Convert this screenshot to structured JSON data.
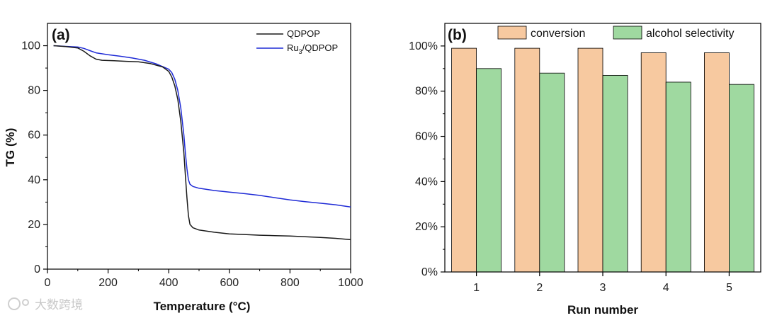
{
  "watermark": "大数跨境",
  "chart_data": [
    {
      "type": "line",
      "panel_label": "(a)",
      "xlabel": "Temperature (°C)",
      "ylabel": "TG (%)",
      "xlim": [
        0,
        1000
      ],
      "ylim": [
        0,
        110
      ],
      "xticks": [
        0,
        200,
        400,
        600,
        800,
        1000
      ],
      "yticks": [
        0,
        20,
        40,
        60,
        80,
        100
      ],
      "legend_position": "top-right",
      "series": [
        {
          "name": "QDPOP",
          "legend_main": "QDPOP",
          "color": "#1a1a1a",
          "x": [
            20,
            60,
            100,
            120,
            140,
            160,
            180,
            220,
            260,
            300,
            340,
            380,
            400,
            410,
            420,
            430,
            440,
            450,
            455,
            460,
            465,
            470,
            480,
            500,
            550,
            600,
            650,
            700,
            750,
            800,
            850,
            900,
            950,
            1000
          ],
          "y": [
            100,
            99.6,
            99,
            97.5,
            95.5,
            94,
            93.5,
            93.3,
            93,
            92.8,
            92,
            90.5,
            88.5,
            86,
            82,
            76,
            66,
            52,
            42,
            32,
            24,
            20,
            18.5,
            17.5,
            16.5,
            15.8,
            15.5,
            15.2,
            15,
            14.8,
            14.5,
            14.2,
            13.8,
            13.2
          ]
        },
        {
          "name": "Ru3/QDPOP",
          "legend_main": "Ru",
          "legend_sub": "3",
          "legend_rest": "/QDPOP",
          "color": "#1f2bd6",
          "x": [
            20,
            60,
            100,
            120,
            140,
            160,
            200,
            240,
            280,
            320,
            360,
            400,
            410,
            420,
            430,
            440,
            450,
            455,
            460,
            465,
            470,
            480,
            500,
            550,
            600,
            650,
            700,
            750,
            800,
            850,
            900,
            950,
            1000
          ],
          "y": [
            100,
            99.7,
            99.4,
            98.8,
            97.8,
            96.8,
            96,
            95.3,
            94.5,
            93.5,
            91.8,
            89.5,
            88,
            85,
            80,
            72,
            60,
            52,
            45,
            40,
            38,
            37,
            36.2,
            35.2,
            34.5,
            33.8,
            33,
            32,
            31,
            30.2,
            29.5,
            28.8,
            27.8
          ]
        }
      ]
    },
    {
      "type": "bar",
      "panel_label": "(b)",
      "xlabel": "Run number",
      "ylabel": "",
      "categories": [
        "1",
        "2",
        "3",
        "4",
        "5"
      ],
      "ylim": [
        0,
        110
      ],
      "yticks": [
        0,
        20,
        40,
        60,
        80,
        100
      ],
      "ytick_labels": [
        "0%",
        "20%",
        "40%",
        "60%",
        "80%",
        "100%"
      ],
      "legend_position": "top",
      "series": [
        {
          "name": "conversion",
          "color": "#f7c9a0",
          "values": [
            99,
            99,
            99,
            97,
            97
          ]
        },
        {
          "name": "alcohol selectivity",
          "color": "#9fd9a0",
          "values": [
            90,
            88,
            87,
            84,
            83
          ]
        }
      ]
    }
  ]
}
